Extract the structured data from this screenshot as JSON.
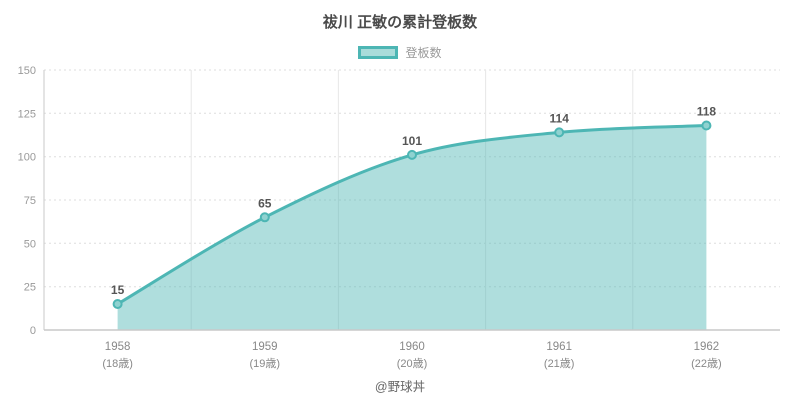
{
  "footer": {
    "credit": "@野球丼"
  },
  "colors": {
    "line": "#4db6b4",
    "fill_opacity": 0.45,
    "fill_light": "#a9dcda",
    "marker_fill": "#8fd2d0",
    "grid_dotted": "#dedede",
    "grid_vertical": "#e7e7e7",
    "axis_line": "#c9c9c9",
    "tick_label": "#999999",
    "x_label": "#888888",
    "value_label": "#555555",
    "title_text": "#4a4a4a",
    "legend_text": "#999999",
    "footer_text": "#666666"
  },
  "chart_data": {
    "type": "area",
    "title": "祓川 正敏の累計登板数",
    "categories": [
      "1958",
      "1959",
      "1960",
      "1961",
      "1962"
    ],
    "category_sublabels": [
      "(18歳)",
      "(19歳)",
      "(20歳)",
      "(21歳)",
      "(22歳)"
    ],
    "series": [
      {
        "name": "登板数",
        "values": [
          15,
          65,
          101,
          114,
          118
        ]
      }
    ],
    "xlabel": "",
    "ylabel": "",
    "ylim": [
      0,
      150
    ],
    "yticks": [
      0,
      25,
      50,
      75,
      100,
      125,
      150
    ],
    "grid": true,
    "legend_position": "top",
    "smooth": true,
    "value_labels": true
  }
}
